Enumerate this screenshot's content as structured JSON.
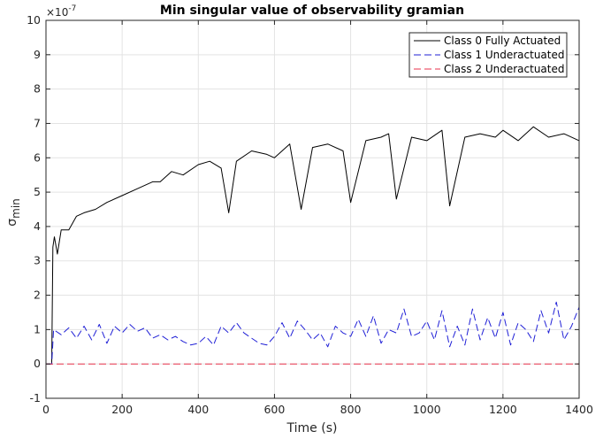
{
  "chart_data": {
    "type": "line",
    "title": "Min singular value of observability gramian",
    "xlabel": "Time (s)",
    "ylabel_main": "σ",
    "ylabel_sub": "min",
    "y_exponent_base": "×10",
    "y_exponent_power": "-7",
    "xlim": [
      0,
      1400
    ],
    "ylim": [
      -1,
      10
    ],
    "x_ticks": [
      "0",
      "200",
      "400",
      "600",
      "800",
      "1000",
      "1200",
      "1400"
    ],
    "y_ticks": [
      "-1",
      "0",
      "1",
      "2",
      "3",
      "4",
      "5",
      "6",
      "7",
      "8",
      "9",
      "10"
    ],
    "grid": true,
    "legend_position": "top-right",
    "series": [
      {
        "name": "Class 0 Fully Actuated",
        "color": "#000000",
        "dash": "solid",
        "x": [
          0,
          15,
          18,
          22,
          30,
          40,
          60,
          80,
          100,
          130,
          160,
          200,
          240,
          280,
          300,
          330,
          360,
          400,
          430,
          460,
          480,
          500,
          540,
          580,
          600,
          640,
          670,
          700,
          740,
          780,
          800,
          840,
          880,
          900,
          920,
          960,
          1000,
          1040,
          1060,
          1100,
          1140,
          1180,
          1200,
          1240,
          1280,
          1320,
          1360,
          1400
        ],
        "y": [
          0,
          0,
          3.4,
          3.7,
          3.2,
          3.9,
          3.9,
          4.3,
          4.4,
          4.5,
          4.7,
          4.9,
          5.1,
          5.3,
          5.3,
          5.6,
          5.5,
          5.8,
          5.9,
          5.7,
          4.4,
          5.9,
          6.2,
          6.1,
          6.0,
          6.4,
          4.5,
          6.3,
          6.4,
          6.2,
          4.7,
          6.5,
          6.6,
          6.7,
          4.8,
          6.6,
          6.5,
          6.8,
          4.6,
          6.6,
          6.7,
          6.6,
          6.8,
          6.5,
          6.9,
          6.6,
          6.7,
          6.5
        ]
      },
      {
        "name": "Class 1 Underactuated",
        "color": "#1f1fd6",
        "dash": "dashed",
        "x": [
          0,
          15,
          20,
          40,
          60,
          80,
          100,
          120,
          140,
          160,
          180,
          200,
          220,
          240,
          260,
          280,
          300,
          320,
          340,
          360,
          380,
          400,
          420,
          440,
          460,
          480,
          500,
          520,
          540,
          560,
          580,
          600,
          620,
          640,
          660,
          680,
          700,
          720,
          740,
          760,
          780,
          800,
          820,
          840,
          860,
          880,
          900,
          920,
          940,
          960,
          980,
          1000,
          1020,
          1040,
          1060,
          1080,
          1100,
          1120,
          1140,
          1160,
          1180,
          1200,
          1220,
          1240,
          1260,
          1280,
          1300,
          1320,
          1340,
          1360,
          1380,
          1400
        ],
        "y": [
          0,
          0,
          1.0,
          0.85,
          1.05,
          0.75,
          1.1,
          0.7,
          1.15,
          0.6,
          1.1,
          0.9,
          1.15,
          0.95,
          1.05,
          0.75,
          0.85,
          0.7,
          0.8,
          0.65,
          0.55,
          0.6,
          0.8,
          0.55,
          1.1,
          0.9,
          1.2,
          0.9,
          0.75,
          0.6,
          0.55,
          0.8,
          1.2,
          0.75,
          1.25,
          1.0,
          0.7,
          0.9,
          0.5,
          1.1,
          0.9,
          0.8,
          1.3,
          0.8,
          1.4,
          0.6,
          1.0,
          0.9,
          1.6,
          0.8,
          0.9,
          1.25,
          0.7,
          1.55,
          0.5,
          1.1,
          0.55,
          1.6,
          0.7,
          1.35,
          0.75,
          1.5,
          0.55,
          1.2,
          1.0,
          0.65,
          1.55,
          0.9,
          1.8,
          0.7,
          1.1,
          1.65
        ]
      },
      {
        "name": "Class 2 Underactuated",
        "color": "#e8324b",
        "dash": "dashed",
        "x": [
          0,
          1400
        ],
        "y": [
          0,
          0
        ]
      }
    ]
  }
}
